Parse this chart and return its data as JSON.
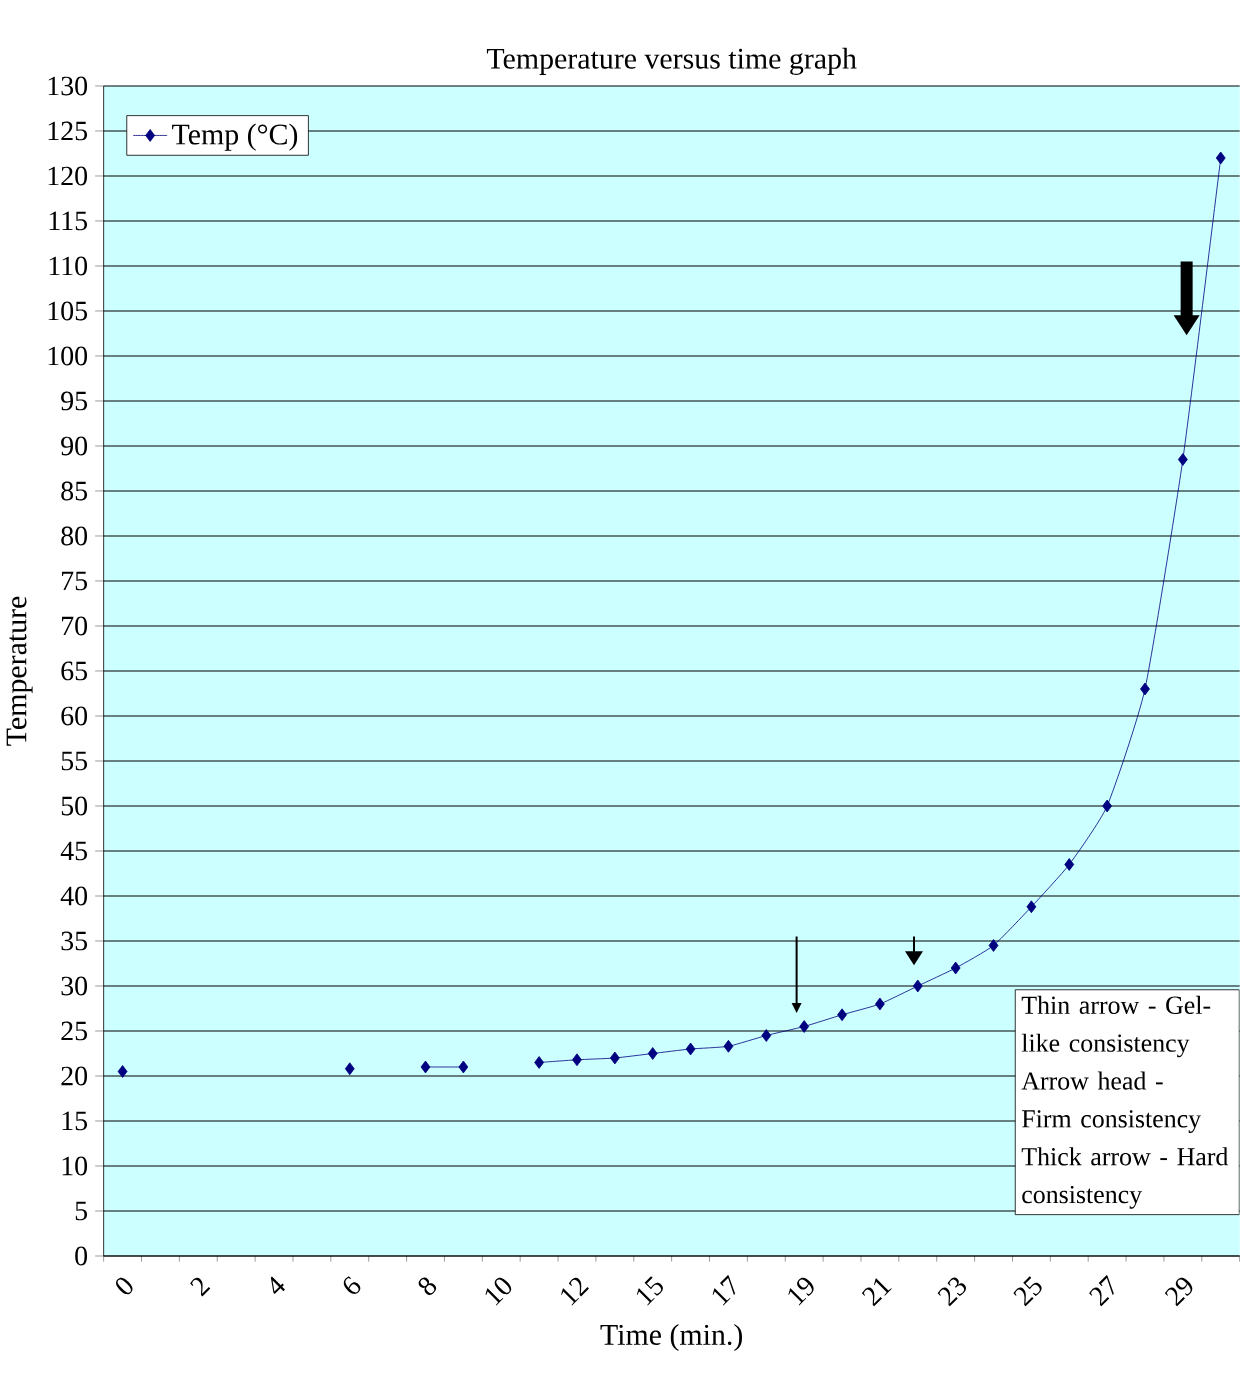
{
  "chart_data": {
    "type": "line",
    "title": "Temperature versus time graph",
    "xlabel": "Time (min.)",
    "ylabel": "Temperature",
    "categories": [
      "0",
      null,
      "2",
      null,
      "4",
      null,
      "6",
      null,
      "8",
      null,
      "10",
      null,
      "12",
      null,
      "15",
      null,
      "17",
      null,
      "19",
      null,
      "21",
      null,
      "23",
      null,
      "25",
      null,
      "27",
      null,
      "29",
      null
    ],
    "series": [
      {
        "name": "Temp (°C)",
        "color": "#000080",
        "values": [
          20.5,
          null,
          null,
          null,
          null,
          null,
          20.8,
          null,
          21,
          21,
          null,
          21.5,
          21.8,
          22,
          22.5,
          23,
          23.3,
          24.5,
          25.5,
          26.8,
          28,
          30,
          32,
          34.5,
          38.8,
          43.5,
          50,
          63,
          88.5,
          122
        ]
      }
    ],
    "ylim": [
      0,
      130
    ],
    "yticks": [
      0,
      5,
      10,
      15,
      20,
      25,
      30,
      35,
      40,
      45,
      50,
      55,
      60,
      65,
      70,
      75,
      80,
      85,
      90,
      95,
      100,
      105,
      110,
      115,
      120,
      125,
      130
    ],
    "grid": "y",
    "legend": "top left",
    "marker": "diamond",
    "line_style": "solid",
    "annotations": [
      "Thin arrow - Gel-like consistency Arrow head - Firm consistency Thick arrow - Hard consistency"
    ]
  }
}
